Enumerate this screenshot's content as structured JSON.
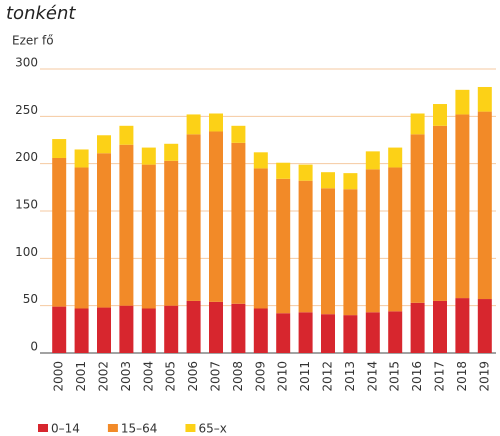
{
  "chart_data": {
    "type": "stacked_bar",
    "title": "tonként",
    "y_label": "Ezer fő",
    "categories": [
      "2000",
      "2001",
      "2002",
      "2003",
      "2004",
      "2005",
      "2006",
      "2007",
      "2008",
      "2009",
      "2010",
      "2011",
      "2012",
      "2013",
      "2014",
      "2015",
      "2016",
      "2017",
      "2018",
      "2019"
    ],
    "series": [
      {
        "name": "0–14",
        "color": "#d7262e",
        "values": [
          49,
          47,
          48,
          50,
          47,
          50,
          55,
          54,
          52,
          47,
          42,
          43,
          41,
          40,
          43,
          44,
          53,
          55,
          58,
          57
        ]
      },
      {
        "name": "15–64",
        "color": "#f28a28",
        "values": [
          157,
          149,
          163,
          170,
          152,
          153,
          176,
          180,
          170,
          148,
          142,
          139,
          133,
          133,
          151,
          152,
          178,
          185,
          194,
          198
        ]
      },
      {
        "name": "65–x",
        "color": "#fcd117",
        "values": [
          20,
          19,
          19,
          20,
          18,
          18,
          21,
          19,
          18,
          17,
          17,
          17,
          17,
          17,
          19,
          21,
          22,
          23,
          26,
          26
        ]
      }
    ],
    "ylim": [
      0,
      300
    ],
    "yticks": [
      0,
      50,
      100,
      150,
      200,
      250,
      300
    ],
    "grid": true,
    "legend": "bottom-left"
  }
}
